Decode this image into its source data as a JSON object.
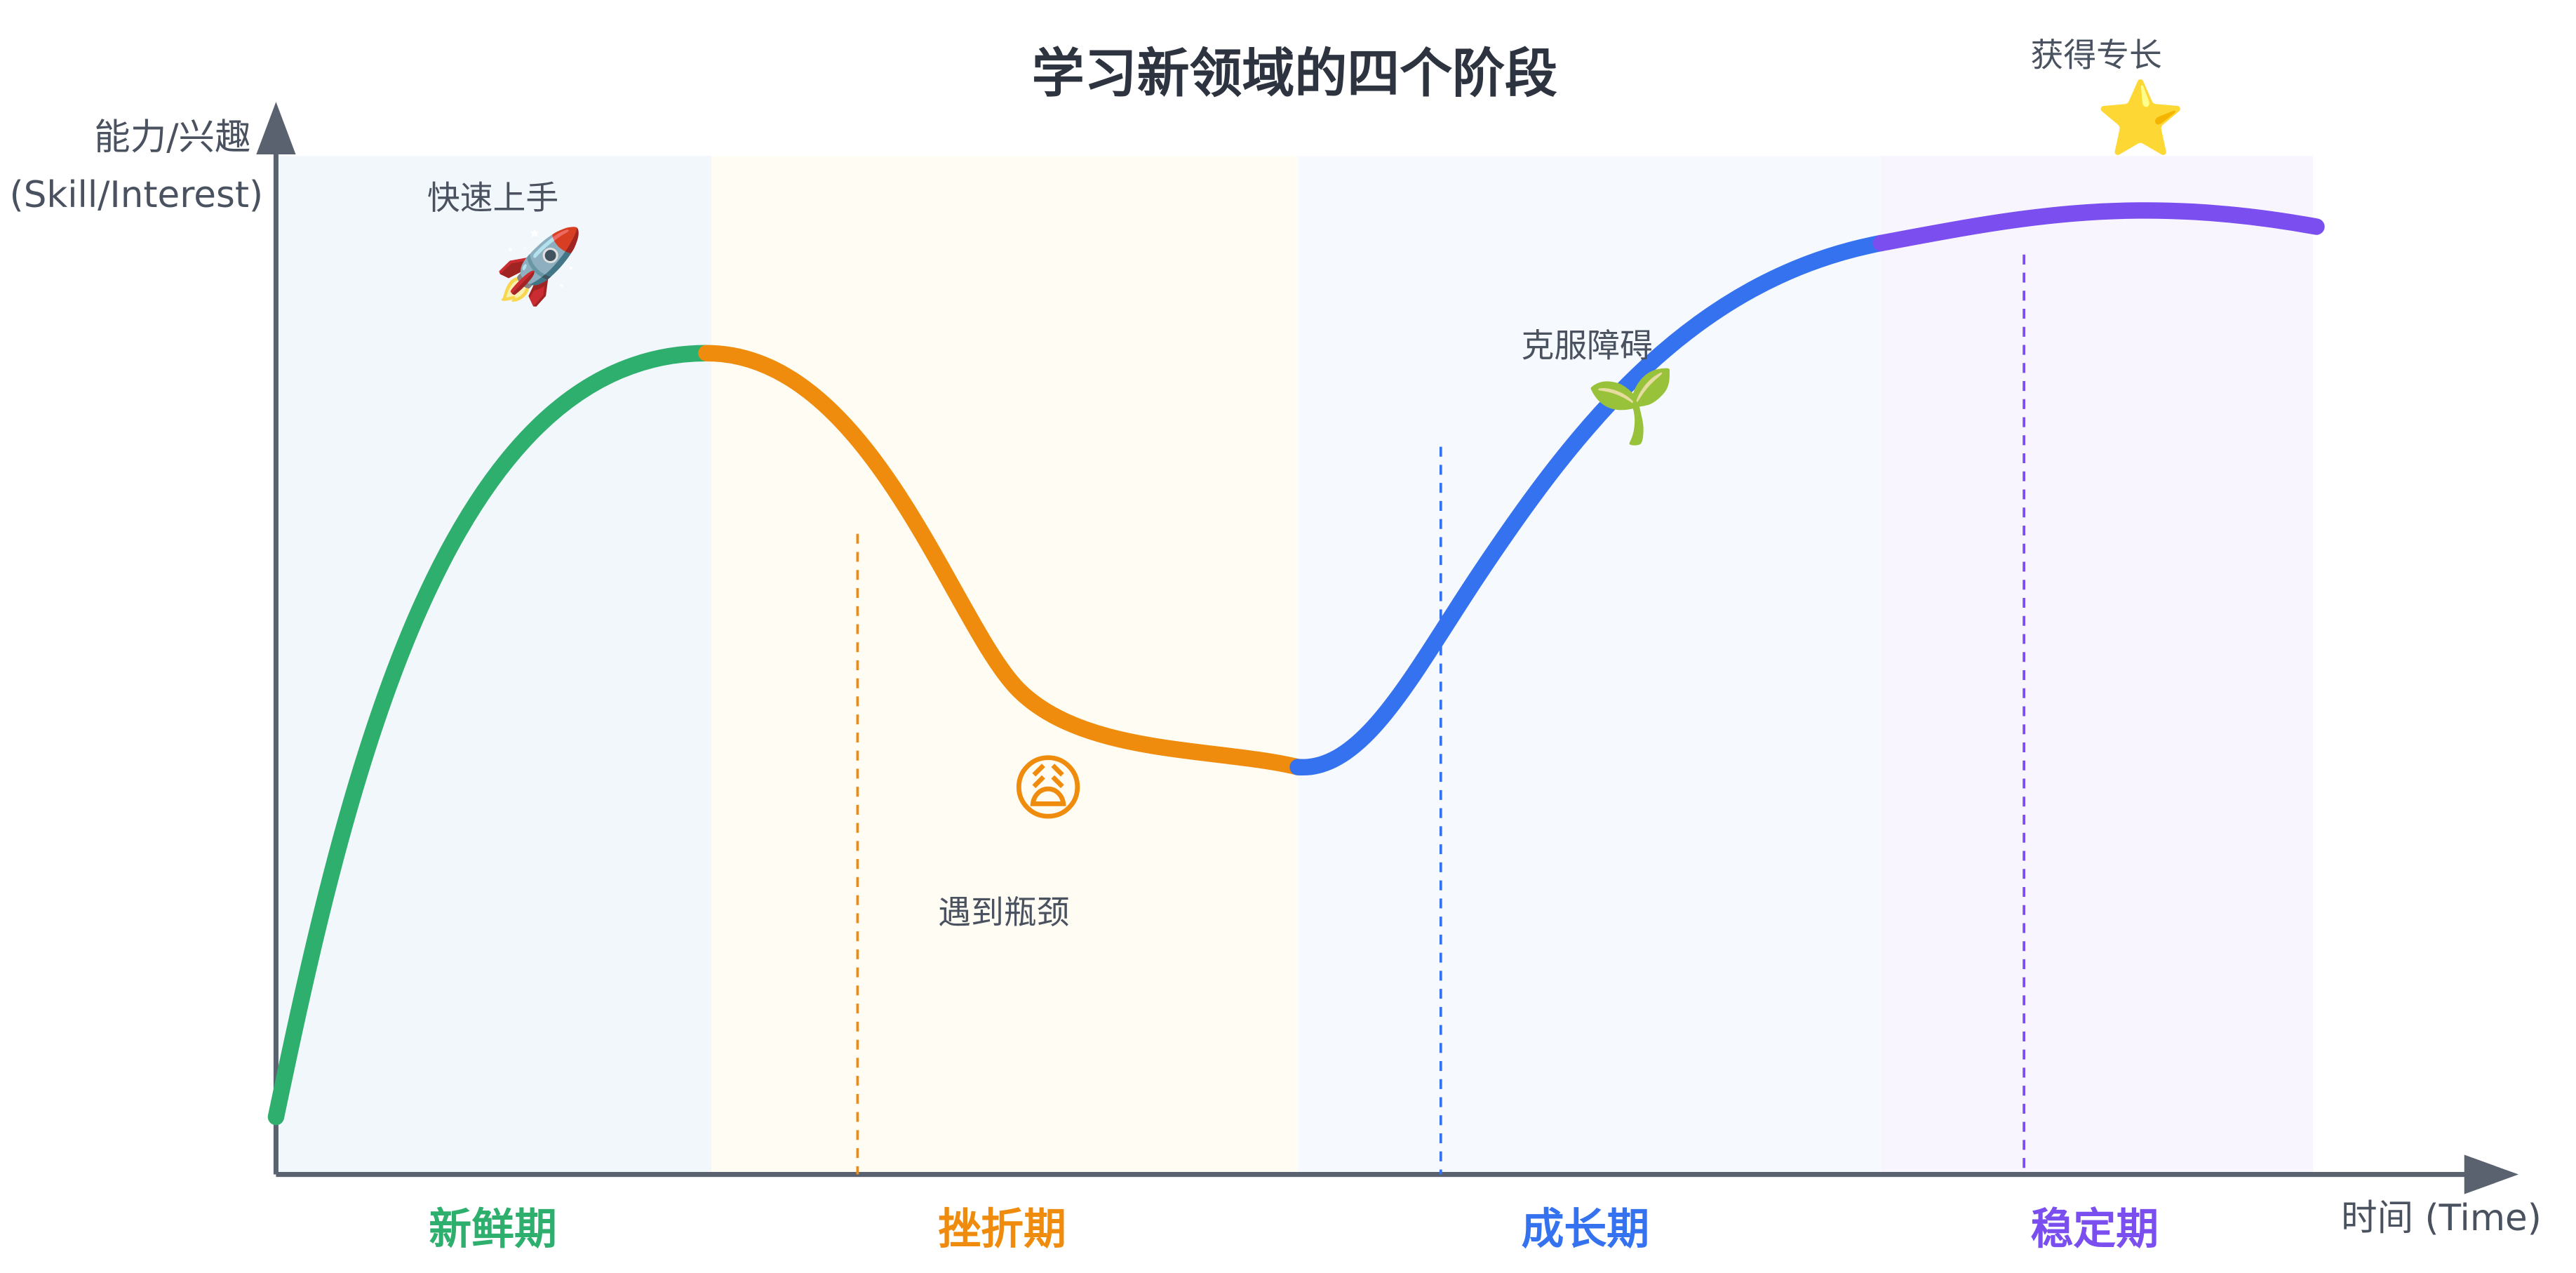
{
  "title": "学习新领域的四个阶段",
  "y_axis_label": [
    "能力/兴趣",
    "(Skill/Interest)"
  ],
  "x_axis_label": "时间 (Time)",
  "stages": [
    {
      "name": "新鲜期",
      "annotation": "快速上手",
      "emoji": "🚀",
      "color": "#2eaf6e"
    },
    {
      "name": "挫折期",
      "annotation": "遇到瓶颈",
      "emoji": "😩",
      "color": "#ef8c0d"
    },
    {
      "name": "成长期",
      "annotation": "克服障碍",
      "emoji": "🌱",
      "color": "#3572ef"
    },
    {
      "name": "稳定期",
      "annotation": "获得专长",
      "emoji": "⭐",
      "color": "#7b4ef0"
    }
  ]
}
